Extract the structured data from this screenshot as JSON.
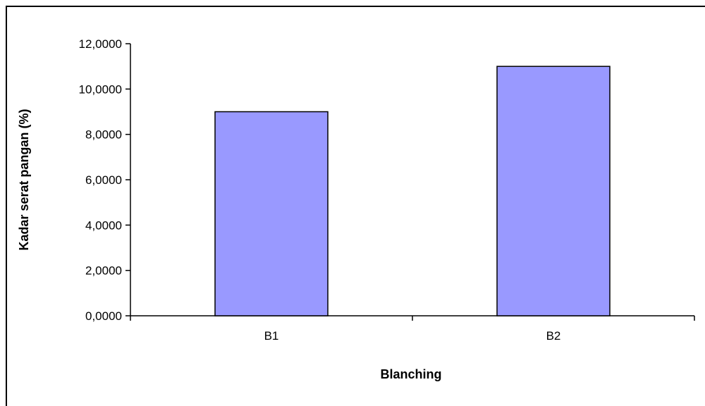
{
  "chart_data": {
    "type": "bar",
    "categories": [
      "B1",
      "B2"
    ],
    "values": [
      9.0,
      11.0
    ],
    "xlabel": "Blanching",
    "ylabel": "Kadar serat pangan (%)",
    "ylim": [
      0,
      12
    ],
    "yticks": [
      0,
      2,
      4,
      6,
      8,
      10,
      12
    ],
    "ytick_labels": [
      "0,0000",
      "2,0000",
      "4,0000",
      "6,0000",
      "8,0000",
      "10,0000",
      "12,0000"
    ],
    "grid": false,
    "legend": "none",
    "colors": {
      "bar_fill": "#9999ff",
      "bar_stroke": "#000000",
      "axis": "#000000"
    }
  }
}
